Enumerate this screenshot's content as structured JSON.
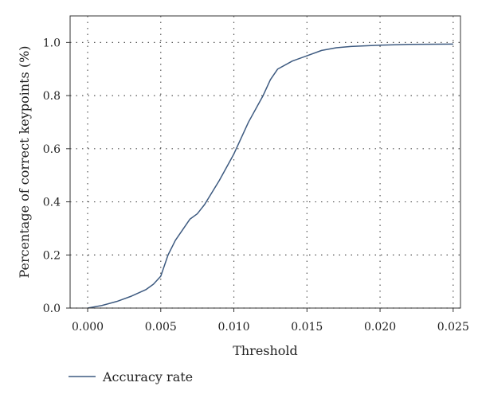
{
  "chart_data": {
    "type": "line",
    "title": "",
    "xlabel": "Threshold",
    "ylabel": "Percentage of correct keypoints (%)",
    "xlim": [
      -0.0012,
      0.0255
    ],
    "ylim": [
      0.0,
      1.1
    ],
    "xticks": [
      0.0,
      0.005,
      0.01,
      0.015,
      0.02,
      0.025
    ],
    "xtick_labels": [
      "0.000",
      "0.005",
      "0.010",
      "0.015",
      "0.020",
      "0.025"
    ],
    "yticks": [
      0.0,
      0.2,
      0.4,
      0.6,
      0.8,
      1.0
    ],
    "ytick_labels": [
      "0.0",
      "0.2",
      "0.4",
      "0.6",
      "0.8",
      "1.0"
    ],
    "grid": true,
    "legend_position": "bottom-left",
    "series": [
      {
        "name": "Accuracy rate",
        "color": "#3d5a80",
        "x": [
          0.0,
          0.001,
          0.002,
          0.003,
          0.004,
          0.0045,
          0.005,
          0.0055,
          0.006,
          0.007,
          0.0075,
          0.008,
          0.009,
          0.01,
          0.011,
          0.012,
          0.0125,
          0.013,
          0.014,
          0.015,
          0.016,
          0.017,
          0.018,
          0.02,
          0.022,
          0.025
        ],
        "y": [
          0.0,
          0.01,
          0.025,
          0.045,
          0.07,
          0.09,
          0.12,
          0.2,
          0.255,
          0.335,
          0.355,
          0.39,
          0.48,
          0.58,
          0.7,
          0.8,
          0.86,
          0.9,
          0.93,
          0.95,
          0.97,
          0.98,
          0.985,
          0.99,
          0.993,
          0.994
        ]
      }
    ]
  }
}
